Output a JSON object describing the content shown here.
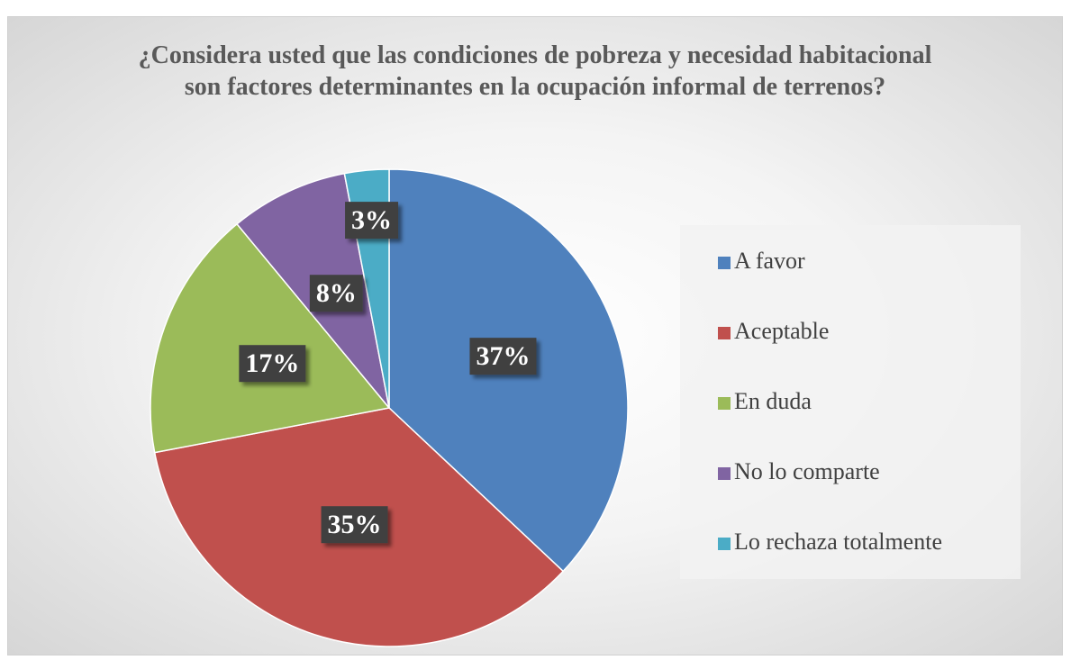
{
  "chart_data": {
    "type": "pie",
    "title": "¿Considera usted que las condiciones de pobreza y necesidad habitacional son factores determinantes en la ocupación informal de terrenos?",
    "categories": [
      "A favor",
      "Aceptable",
      "En duda",
      "No lo comparte",
      "Lo rechaza totalmente"
    ],
    "values": [
      37,
      35,
      17,
      8,
      3
    ],
    "value_labels": [
      "37%",
      "35%",
      "17%",
      "8%",
      "3%"
    ],
    "colors": [
      "#4f81bd",
      "#c0504d",
      "#9bbb59",
      "#8064a2",
      "#4bacc6"
    ],
    "legend": "right"
  }
}
